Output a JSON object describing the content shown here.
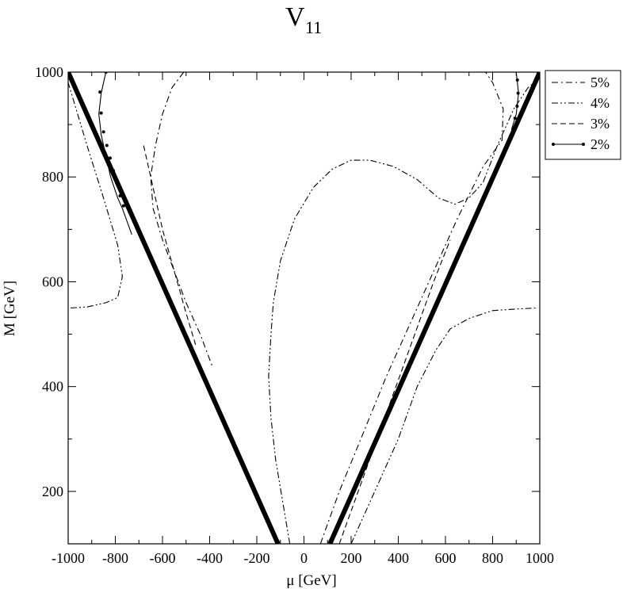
{
  "chart_data": {
    "type": "line",
    "title": "V",
    "title_subscript": "11",
    "xlabel": "μ [GeV]",
    "ylabel": "M [GeV]",
    "xlim": [
      -1000,
      1000
    ],
    "ylim": [
      100,
      1000
    ],
    "grid": false,
    "legend_position": "outside-top-right",
    "xticks": [
      -1000,
      -800,
      -600,
      -400,
      -200,
      0,
      200,
      400,
      600,
      800,
      1000
    ],
    "yticks": [
      200,
      400,
      600,
      800,
      1000
    ],
    "boundary_lines": [
      {
        "x": [
          -1000,
          -110
        ],
        "y": [
          1000,
          100
        ]
      },
      {
        "x": [
          110,
          1000
        ],
        "y": [
          100,
          1000
        ]
      }
    ],
    "series": [
      {
        "name": "5%",
        "style": "dash-dot",
        "segments": [
          [
            [
              -510,
              1000
            ],
            [
              -560,
              970
            ],
            [
              -600,
              920
            ],
            [
              -630,
              860
            ],
            [
              -650,
              800
            ],
            [
              -640,
              740
            ],
            [
              -600,
              680
            ],
            [
              -550,
              620
            ],
            [
              -500,
              560
            ],
            [
              -440,
              500
            ],
            [
              -390,
              440
            ]
          ],
          [
            [
              70,
              100
            ],
            [
              150,
              200
            ],
            [
              250,
              310
            ],
            [
              350,
              420
            ],
            [
              450,
              520
            ],
            [
              550,
              620
            ],
            [
              650,
              720
            ],
            [
              760,
              820
            ],
            [
              840,
              870
            ],
            [
              845,
              930
            ],
            [
              800,
              980
            ],
            [
              770,
              1000
            ]
          ]
        ]
      },
      {
        "name": "4%",
        "style": "dash-dot-dot",
        "segments": [
          [
            [
              -990,
              550
            ],
            [
              -920,
              552
            ],
            [
              -840,
              560
            ],
            [
              -790,
              570
            ],
            [
              -770,
              610
            ],
            [
              -790,
              670
            ],
            [
              -850,
              760
            ],
            [
              -920,
              860
            ],
            [
              -980,
              950
            ],
            [
              -1000,
              980
            ]
          ],
          [
            [
              -60,
              100
            ],
            [
              -90,
              180
            ],
            [
              -120,
              260
            ],
            [
              -140,
              340
            ],
            [
              -150,
              420
            ],
            [
              -140,
              500
            ],
            [
              -130,
              560
            ],
            [
              -100,
              640
            ],
            [
              -40,
              720
            ],
            [
              40,
              780
            ],
            [
              120,
              815
            ],
            [
              200,
              832
            ],
            [
              280,
              832
            ],
            [
              380,
              820
            ],
            [
              480,
              795
            ],
            [
              570,
              760
            ],
            [
              640,
              748
            ],
            [
              700,
              760
            ],
            [
              760,
              790
            ],
            [
              820,
              860
            ],
            [
              890,
              930
            ],
            [
              950,
              970
            ],
            [
              1000,
              990
            ]
          ],
          [
            [
              200,
              100
            ],
            [
              300,
              200
            ],
            [
              400,
              300
            ],
            [
              480,
              400
            ],
            [
              560,
              470
            ],
            [
              620,
              510
            ],
            [
              700,
              530
            ],
            [
              800,
              545
            ],
            [
              900,
              548
            ],
            [
              990,
              550
            ]
          ]
        ]
      },
      {
        "name": "3%",
        "style": "dashed",
        "segments": [
          [
            [
              -680,
              860
            ],
            [
              -640,
              780
            ],
            [
              -600,
              700
            ],
            [
              -550,
              620
            ],
            [
              -500,
              540
            ],
            [
              -460,
              480
            ]
          ],
          [
            [
              150,
              100
            ],
            [
              230,
              200
            ],
            [
              310,
              300
            ],
            [
              390,
              400
            ],
            [
              470,
              500
            ],
            [
              550,
              600
            ],
            [
              620,
              680
            ]
          ]
        ]
      },
      {
        "name": "2%",
        "style": "solid-circles",
        "segments": [
          [
            [
              -840,
              1000
            ],
            [
              -860,
              960
            ],
            [
              -870,
              920
            ],
            [
              -860,
              880
            ],
            [
              -840,
              840
            ],
            [
              -820,
              800
            ],
            [
              -790,
              760
            ],
            [
              -770,
              740
            ],
            [
              -730,
              690
            ]
          ],
          [
            [
              900,
              1000
            ],
            [
              910,
              960
            ],
            [
              900,
              920
            ],
            [
              880,
              890
            ]
          ]
        ],
        "markers": [
          [
            -840,
            1000
          ],
          [
            -865,
            962
          ],
          [
            -860,
            922
          ],
          [
            -850,
            886
          ],
          [
            -836,
            860
          ],
          [
            -822,
            836
          ],
          [
            -808,
            812
          ],
          [
            -794,
            788
          ],
          [
            -780,
            764
          ],
          [
            -765,
            745
          ],
          [
            905,
            985
          ],
          [
            908,
            960
          ],
          [
            904,
            935
          ],
          [
            895,
            912
          ]
        ]
      }
    ]
  }
}
